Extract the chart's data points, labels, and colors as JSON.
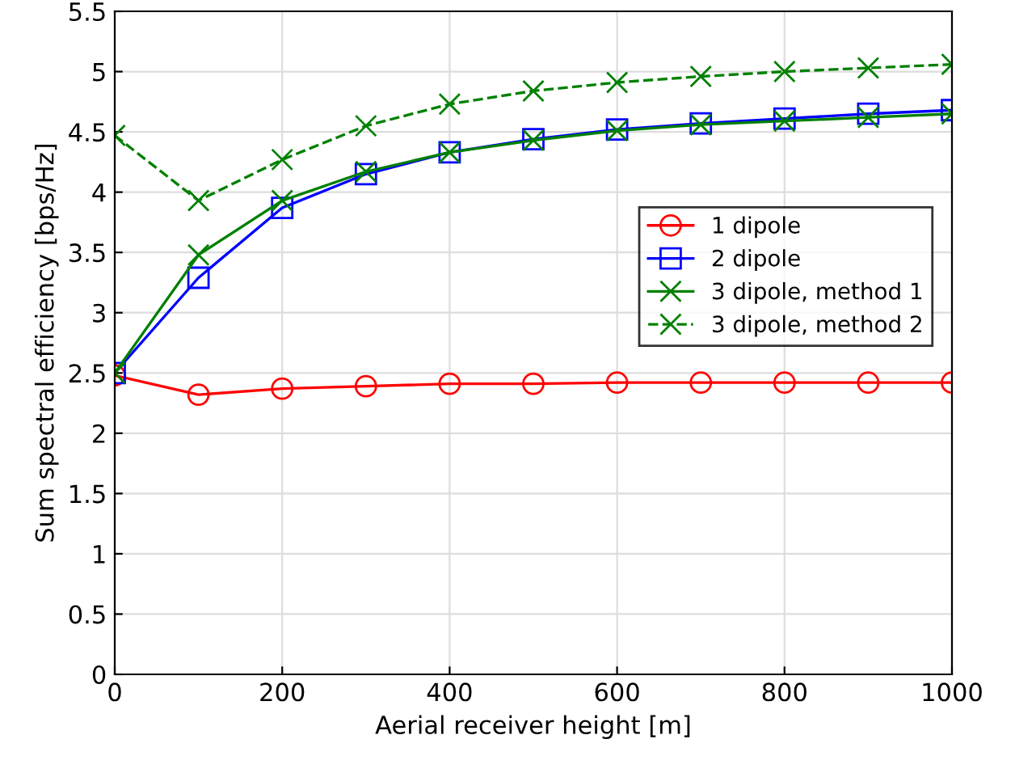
{
  "chart_data": {
    "type": "line",
    "xlabel": "Aerial receiver height [m]",
    "ylabel": "Sum spectral efficiency [bps/Hz]",
    "x": [
      0,
      100,
      200,
      300,
      400,
      500,
      600,
      700,
      800,
      900,
      1000
    ],
    "series": [
      {
        "name": "1 dipole",
        "color": "#ff0000",
        "marker": "circle",
        "line_style": "solid",
        "values": [
          2.48,
          2.32,
          2.37,
          2.39,
          2.41,
          2.41,
          2.42,
          2.42,
          2.42,
          2.42,
          2.42
        ]
      },
      {
        "name": "2 dipole",
        "color": "#0000ff",
        "marker": "square",
        "line_style": "solid",
        "values": [
          2.5,
          3.29,
          3.87,
          4.15,
          4.33,
          4.44,
          4.52,
          4.57,
          4.61,
          4.65,
          4.68
        ]
      },
      {
        "name": "3 dipole, method 1",
        "color": "#008000",
        "marker": "cross",
        "line_style": "solid",
        "values": [
          2.5,
          3.48,
          3.93,
          4.17,
          4.33,
          4.43,
          4.51,
          4.56,
          4.59,
          4.62,
          4.65
        ]
      },
      {
        "name": "3 dipole, method 2",
        "color": "#008000",
        "marker": "cross",
        "line_style": "dashed",
        "values": [
          4.47,
          3.93,
          4.27,
          4.55,
          4.73,
          4.84,
          4.91,
          4.96,
          5.0,
          5.03,
          5.06
        ]
      }
    ],
    "xlim": [
      0,
      1000
    ],
    "xticks": [
      0,
      200,
      400,
      600,
      800,
      1000
    ],
    "ylim": [
      0,
      5.5
    ],
    "yticks": [
      0,
      0.5,
      1,
      1.5,
      2,
      2.5,
      3,
      3.5,
      4,
      4.5,
      5,
      5.5
    ],
    "grid": true,
    "legend": "right"
  }
}
